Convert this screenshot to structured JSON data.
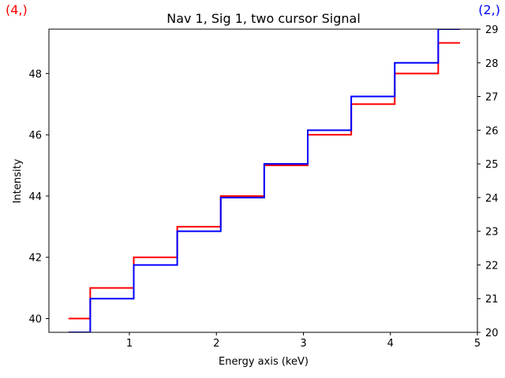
{
  "chart_data": {
    "type": "line",
    "title": "Nav 1, Sig 1, two cursor Signal",
    "xlabel": "Energy axis (keV)",
    "ylabel": "Intensity",
    "xlim": [
      0.075,
      5.0
    ],
    "ylim_left": [
      39.55,
      49.45
    ],
    "ylim_right": [
      20.0,
      29.0
    ],
    "x_ticks": [
      1,
      2,
      3,
      4,
      5
    ],
    "y_ticks_left": [
      40,
      42,
      44,
      46,
      48
    ],
    "y_ticks_right": [
      20,
      21,
      22,
      23,
      24,
      25,
      26,
      27,
      28,
      29
    ],
    "grid": false,
    "drawstyle": "steps-mid",
    "corner_labels": [
      {
        "text": "(4,)",
        "color": "#ff0000",
        "position": "top-left"
      },
      {
        "text": "(2,)",
        "color": "#0000ff",
        "position": "top-right"
      }
    ],
    "series": [
      {
        "color": "#ff0000",
        "axis": "left",
        "x": [
          0.3,
          0.8,
          1.3,
          1.8,
          2.3,
          2.8,
          3.3,
          3.8,
          4.3,
          4.8
        ],
        "values": [
          40,
          41,
          42,
          43,
          44,
          45,
          46,
          47,
          48,
          49
        ]
      },
      {
        "color": "#0000ff",
        "axis": "right",
        "x": [
          0.3,
          0.8,
          1.3,
          1.8,
          2.3,
          2.8,
          3.3,
          3.8,
          4.3,
          4.8
        ],
        "values": [
          20,
          21,
          22,
          23,
          24,
          25,
          26,
          27,
          28,
          29
        ]
      }
    ]
  }
}
